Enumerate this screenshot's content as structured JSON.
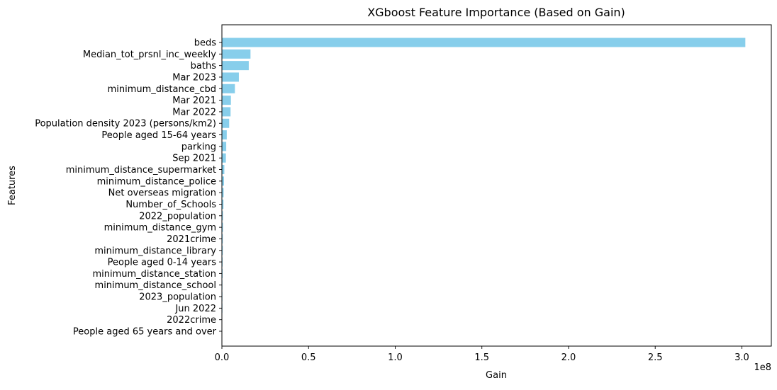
{
  "chart_data": {
    "type": "bar",
    "orientation": "horizontal",
    "title": "XGboost Feature Importance (Based on Gain)",
    "xlabel": "Gain",
    "ylabel": "Features",
    "x_offset_label": "1e8",
    "xlim": [
      0,
      3.17
    ],
    "xticks": [
      0.0,
      0.5,
      1.0,
      1.5,
      2.0,
      2.5,
      3.0
    ],
    "xtick_labels": [
      "0.0",
      "0.5",
      "1.0",
      "1.5",
      "2.0",
      "2.5",
      "3.0"
    ],
    "grid": false,
    "bar_color": "#87ceeb",
    "categories": [
      "beds",
      "Median_tot_prsnl_inc_weekly",
      "baths",
      "Mar 2023",
      "minimum_distance_cbd",
      "Mar 2021",
      "Mar 2022",
      "Population density 2023 (persons/km2)",
      "People aged 15-64 years",
      "parking",
      "Sep 2021",
      "minimum_distance_supermarket",
      "minimum_distance_police",
      "Net overseas migration",
      "Number_of_Schools",
      "2022_population",
      "minimum_distance_gym",
      "2021crime",
      "minimum_distance_library",
      "People aged 0-14 years",
      "minimum_distance_station",
      "minimum_distance_school",
      "2023_population",
      "Jun 2022",
      "2022crime",
      "People aged 65 years and over"
    ],
    "values": [
      3.02,
      0.165,
      0.155,
      0.098,
      0.075,
      0.052,
      0.05,
      0.042,
      0.028,
      0.025,
      0.023,
      0.014,
      0.012,
      0.01,
      0.009,
      0.006,
      0.006,
      0.005,
      0.005,
      0.004,
      0.004,
      0.003,
      0.003,
      0.003,
      0.002,
      0.002
    ]
  }
}
